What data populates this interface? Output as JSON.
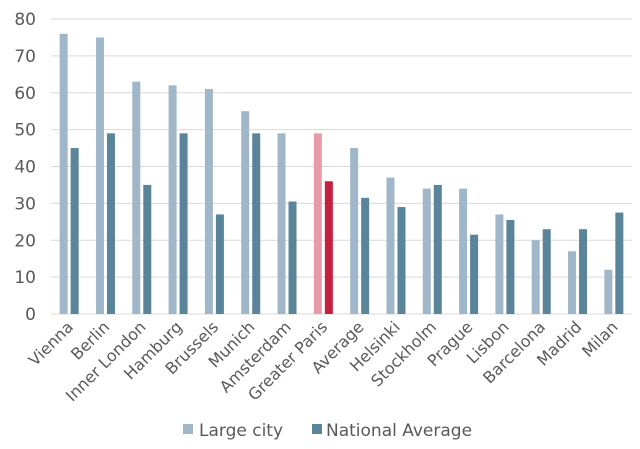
{
  "chart_data": {
    "type": "bar",
    "categories": [
      "Vienna",
      "Berlin",
      "Inner London",
      "Hamburg",
      "Brussels",
      "Munich",
      "Amsterdam",
      "Greater Paris",
      "Average",
      "Helsinki",
      "Stockholm",
      "Prague",
      "Lisbon",
      "Barcelona",
      "Madrid",
      "Milan"
    ],
    "series": [
      {
        "name": "Large city",
        "values": [
          76,
          75,
          63,
          62,
          61,
          55,
          49,
          49,
          45,
          37,
          34,
          34,
          27,
          20,
          17,
          12
        ]
      },
      {
        "name": "National Average",
        "values": [
          45,
          49,
          35,
          49,
          27,
          49,
          30.5,
          36,
          31.5,
          29,
          35,
          21.5,
          25.5,
          23,
          23,
          27.5
        ]
      }
    ],
    "highlight_category": "Greater Paris",
    "ylim": [
      0,
      80
    ],
    "yticks": [
      0,
      10,
      20,
      30,
      40,
      50,
      60,
      70,
      80
    ],
    "grid": true,
    "legend_position": "bottom",
    "colors": {
      "large_city": "#9fb7c8",
      "national_average": "#5a8499",
      "highlight_large_city": "#e89aa8",
      "highlight_national_average": "#c3213f",
      "grid": "#d9d9d9",
      "text": "#595959"
    }
  }
}
